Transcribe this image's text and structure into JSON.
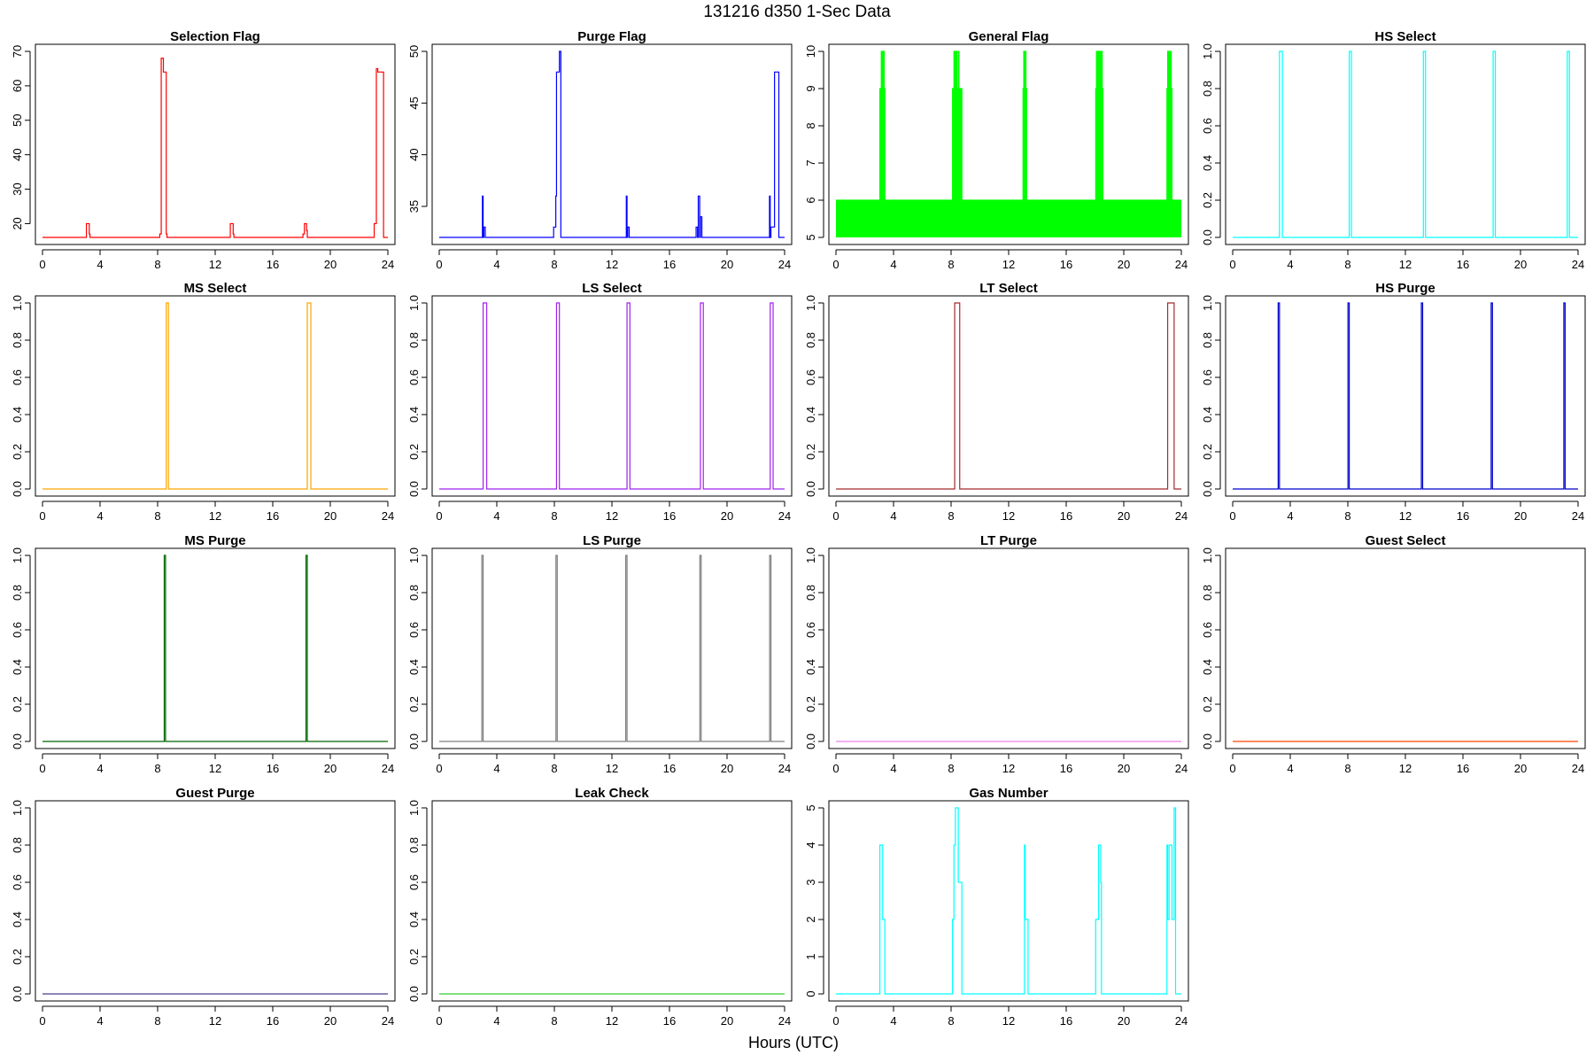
{
  "figure": {
    "title": "131216   d350   1-Sec Data",
    "xlabel": "Hours (UTC)"
  },
  "chart_data": [
    {
      "type": "line",
      "title": "Selection Flag",
      "color": "#ff0000",
      "x_ticks": [
        0,
        4,
        8,
        12,
        16,
        20,
        24
      ],
      "y_ticks": [
        20,
        30,
        40,
        50,
        60,
        70
      ],
      "ylim": [
        16,
        70
      ],
      "xlim": [
        0,
        24
      ],
      "x": [
        0,
        3.0,
        3.05,
        3.2,
        3.25,
        3.3,
        8.1,
        8.15,
        8.25,
        8.4,
        8.6,
        8.65,
        8.7,
        13.0,
        13.05,
        13.2,
        13.25,
        13.3,
        18.0,
        18.1,
        18.2,
        18.35,
        18.4,
        22.95,
        23.0,
        23.05,
        23.2,
        23.3,
        23.4,
        23.7,
        24
      ],
      "values": [
        16,
        16,
        20,
        20,
        17,
        16,
        16,
        17,
        68,
        64,
        17,
        16,
        16,
        16,
        20,
        20,
        17,
        16,
        16,
        17,
        20,
        18,
        16,
        16,
        16,
        20,
        65,
        64,
        64,
        16,
        16
      ]
    },
    {
      "type": "line",
      "title": "Purge Flag",
      "color": "#0000ff",
      "x_ticks": [
        0,
        4,
        8,
        12,
        16,
        20,
        24
      ],
      "y_ticks": [
        35,
        40,
        45,
        50
      ],
      "ylim": [
        32,
        50
      ],
      "xlim": [
        0,
        24
      ],
      "x": [
        0,
        2.95,
        3.0,
        3.05,
        3.1,
        3.15,
        3.2,
        7.9,
        7.95,
        8.0,
        8.1,
        8.15,
        8.35,
        8.45,
        8.5,
        13.0,
        13.05,
        13.1,
        13.15,
        13.2,
        17.8,
        17.85,
        17.9,
        17.95,
        18.0,
        18.1,
        18.15,
        18.25,
        22.9,
        22.95,
        23.0,
        23.05,
        23.3,
        23.5,
        23.6,
        24
      ],
      "values": [
        32,
        32,
        36,
        32,
        33,
        33,
        32,
        32,
        33,
        33,
        36,
        48,
        50,
        32,
        32,
        36,
        32,
        33,
        33,
        32,
        32,
        33,
        33,
        32,
        36,
        32,
        34,
        32,
        32,
        36,
        32,
        33,
        48,
        48,
        32,
        32
      ]
    },
    {
      "type": "area",
      "title": "General Flag",
      "color": "#00ff00",
      "x_ticks": [
        0,
        4,
        8,
        12,
        16,
        20,
        24
      ],
      "y_ticks": [
        5,
        6,
        7,
        8,
        9,
        10
      ],
      "ylim": [
        5,
        10
      ],
      "xlim": [
        0,
        24
      ],
      "x": [
        0,
        3.0,
        3.05,
        3.15,
        3.25,
        3.35,
        3.4,
        8.05,
        8.1,
        8.2,
        8.4,
        8.5,
        8.55,
        8.75,
        8.8,
        12.95,
        13.0,
        13.05,
        13.2,
        13.25,
        18.0,
        18.05,
        18.1,
        18.5,
        18.55,
        22.95,
        23.0,
        23.05,
        23.3,
        23.35,
        24
      ],
      "values": [
        6,
        6,
        9,
        10,
        10,
        9,
        6,
        6,
        9,
        10,
        9,
        10,
        9,
        6,
        6,
        6,
        9,
        10,
        9,
        6,
        6,
        9,
        10,
        9,
        6,
        6,
        9,
        10,
        9,
        6,
        6
      ]
    },
    {
      "type": "line",
      "title": "HS Select",
      "color": "#00ffff",
      "x_ticks": [
        0,
        4,
        8,
        12,
        16,
        20,
        24
      ],
      "y_ticks": [
        0.0,
        0.2,
        0.4,
        0.6,
        0.8,
        1.0
      ],
      "ylim": [
        0,
        1
      ],
      "xlim": [
        0,
        24
      ],
      "x": [
        0,
        3.2,
        3.25,
        3.4,
        3.45,
        8.05,
        8.1,
        8.2,
        8.25,
        13.2,
        13.25,
        13.35,
        13.4,
        18.05,
        18.1,
        18.2,
        18.25,
        23.2,
        23.25,
        23.35,
        23.4,
        24
      ],
      "values": [
        0,
        0,
        1,
        1,
        0,
        0,
        1,
        1,
        0,
        0,
        1,
        1,
        0,
        0,
        1,
        1,
        0,
        0,
        1,
        1,
        0,
        0
      ]
    },
    {
      "type": "line",
      "title": "MS Select",
      "color": "#ffa500",
      "x_ticks": [
        0,
        4,
        8,
        12,
        16,
        20,
        24
      ],
      "y_ticks": [
        0.0,
        0.2,
        0.4,
        0.6,
        0.8,
        1.0
      ],
      "ylim": [
        0,
        1
      ],
      "xlim": [
        0,
        24
      ],
      "x": [
        0,
        8.55,
        8.6,
        8.7,
        8.75,
        18.35,
        18.4,
        18.6,
        18.65,
        24
      ],
      "values": [
        0,
        0,
        1,
        1,
        0,
        0,
        1,
        1,
        0,
        0
      ]
    },
    {
      "type": "line",
      "title": "LS Select",
      "color": "#a020f0",
      "x_ticks": [
        0,
        4,
        8,
        12,
        16,
        20,
        24
      ],
      "y_ticks": [
        0.0,
        0.2,
        0.4,
        0.6,
        0.8,
        1.0
      ],
      "ylim": [
        0,
        1
      ],
      "xlim": [
        0,
        24
      ],
      "x": [
        0,
        3.0,
        3.05,
        3.25,
        3.3,
        8.1,
        8.15,
        8.3,
        8.35,
        13.0,
        13.05,
        13.2,
        13.25,
        18.1,
        18.15,
        18.3,
        18.35,
        22.95,
        23.0,
        23.15,
        23.2,
        24
      ],
      "values": [
        0,
        0,
        1,
        1,
        0,
        0,
        1,
        1,
        0,
        0,
        1,
        1,
        0,
        0,
        1,
        1,
        0,
        0,
        1,
        1,
        0,
        0
      ]
    },
    {
      "type": "line",
      "title": "LT Select",
      "color": "#a52a2a",
      "x_ticks": [
        0,
        4,
        8,
        12,
        16,
        20,
        24
      ],
      "y_ticks": [
        0.0,
        0.2,
        0.4,
        0.6,
        0.8,
        1.0
      ],
      "ylim": [
        0,
        1
      ],
      "xlim": [
        0,
        24
      ],
      "x": [
        0,
        8.2,
        8.25,
        8.55,
        8.6,
        23.0,
        23.05,
        23.45,
        23.5,
        24
      ],
      "values": [
        0,
        0,
        1,
        1,
        0,
        0,
        1,
        1,
        0,
        0
      ]
    },
    {
      "type": "line",
      "title": "HS Purge",
      "color": "#0000cd",
      "x_ticks": [
        0,
        4,
        8,
        12,
        16,
        20,
        24
      ],
      "y_ticks": [
        0.0,
        0.2,
        0.4,
        0.6,
        0.8,
        1.0
      ],
      "ylim": [
        0,
        1
      ],
      "xlim": [
        0,
        24
      ],
      "x": [
        0,
        3.15,
        3.16,
        3.24,
        3.25,
        8.0,
        8.01,
        8.09,
        8.1,
        13.1,
        13.11,
        13.19,
        13.2,
        17.95,
        17.96,
        18.04,
        18.05,
        23.0,
        23.01,
        23.09,
        23.1,
        24
      ],
      "values": [
        0,
        0,
        1,
        1,
        0,
        0,
        1,
        1,
        0,
        0,
        1,
        1,
        0,
        0,
        1,
        1,
        0,
        0,
        1,
        1,
        0,
        0
      ]
    },
    {
      "type": "line",
      "title": "MS Purge",
      "color": "#006400",
      "x_ticks": [
        0,
        4,
        8,
        12,
        16,
        20,
        24
      ],
      "y_ticks": [
        0.0,
        0.2,
        0.4,
        0.6,
        0.8,
        1.0
      ],
      "ylim": [
        0,
        1
      ],
      "xlim": [
        0,
        24
      ],
      "x": [
        0,
        8.45,
        8.46,
        8.54,
        8.55,
        18.3,
        18.31,
        18.39,
        18.4,
        24
      ],
      "values": [
        0,
        0,
        1,
        1,
        0,
        0,
        1,
        1,
        0,
        0
      ]
    },
    {
      "type": "line",
      "title": "LS Purge",
      "color": "#7f7f7f",
      "x_ticks": [
        0,
        4,
        8,
        12,
        16,
        20,
        24
      ],
      "y_ticks": [
        0.0,
        0.2,
        0.4,
        0.6,
        0.8,
        1.0
      ],
      "ylim": [
        0,
        1
      ],
      "xlim": [
        0,
        24
      ],
      "x": [
        0,
        2.95,
        2.96,
        3.04,
        3.05,
        8.1,
        8.11,
        8.19,
        8.2,
        12.95,
        12.96,
        13.04,
        13.05,
        18.1,
        18.11,
        18.19,
        18.2,
        22.95,
        22.96,
        23.04,
        23.05,
        24
      ],
      "values": [
        0,
        0,
        1,
        1,
        0,
        0,
        1,
        1,
        0,
        0,
        1,
        1,
        0,
        0,
        1,
        1,
        0,
        0,
        1,
        1,
        0,
        0
      ]
    },
    {
      "type": "line",
      "title": "LT Purge",
      "color": "#ee82ee",
      "x_ticks": [
        0,
        4,
        8,
        12,
        16,
        20,
        24
      ],
      "y_ticks": [
        0.0,
        0.2,
        0.4,
        0.6,
        0.8,
        1.0
      ],
      "ylim": [
        0,
        1
      ],
      "xlim": [
        0,
        24
      ],
      "x": [
        0,
        24
      ],
      "values": [
        0,
        0
      ]
    },
    {
      "type": "line",
      "title": "Guest Select",
      "color": "#ff4500",
      "x_ticks": [
        0,
        4,
        8,
        12,
        16,
        20,
        24
      ],
      "y_ticks": [
        0.0,
        0.2,
        0.4,
        0.6,
        0.8,
        1.0
      ],
      "ylim": [
        0,
        1
      ],
      "xlim": [
        0,
        24
      ],
      "x": [
        0,
        24
      ],
      "values": [
        0,
        0
      ]
    },
    {
      "type": "line",
      "title": "Guest Purge",
      "color": "#483d8b",
      "x_ticks": [
        0,
        4,
        8,
        12,
        16,
        20,
        24
      ],
      "y_ticks": [
        0.0,
        0.2,
        0.4,
        0.6,
        0.8,
        1.0
      ],
      "ylim": [
        0,
        1
      ],
      "xlim": [
        0,
        24
      ],
      "x": [
        0,
        24
      ],
      "values": [
        0,
        0
      ]
    },
    {
      "type": "line",
      "title": "Leak Check",
      "color": "#32cd32",
      "x_ticks": [
        0,
        4,
        8,
        12,
        16,
        20,
        24
      ],
      "y_ticks": [
        0.0,
        0.2,
        0.4,
        0.6,
        0.8,
        1.0
      ],
      "ylim": [
        0,
        1
      ],
      "xlim": [
        0,
        24
      ],
      "x": [
        0,
        24
      ],
      "values": [
        0,
        0
      ]
    },
    {
      "type": "line",
      "title": "Gas Number",
      "color": "#00ffff",
      "x_ticks": [
        0,
        4,
        8,
        12,
        16,
        20,
        24
      ],
      "y_ticks": [
        0,
        1,
        2,
        3,
        4,
        5
      ],
      "ylim": [
        0,
        5
      ],
      "xlim": [
        0,
        24
      ],
      "x": [
        0,
        3.0,
        3.05,
        3.2,
        3.25,
        3.35,
        3.4,
        8.05,
        8.1,
        8.2,
        8.3,
        8.5,
        8.6,
        8.75,
        8.8,
        12.95,
        13.0,
        13.1,
        13.15,
        13.3,
        13.35,
        18.0,
        18.05,
        18.1,
        18.25,
        18.4,
        18.45,
        22.95,
        23.0,
        23.05,
        23.15,
        23.35,
        23.5,
        23.6,
        24
      ],
      "values": [
        0,
        0,
        4,
        4,
        2,
        2,
        0,
        0,
        2,
        4,
        5,
        3,
        3,
        0,
        0,
        0,
        0,
        4,
        2,
        2,
        0,
        0,
        2,
        2,
        4,
        3,
        0,
        0,
        4,
        2,
        4,
        2,
        5,
        0,
        0
      ]
    }
  ]
}
